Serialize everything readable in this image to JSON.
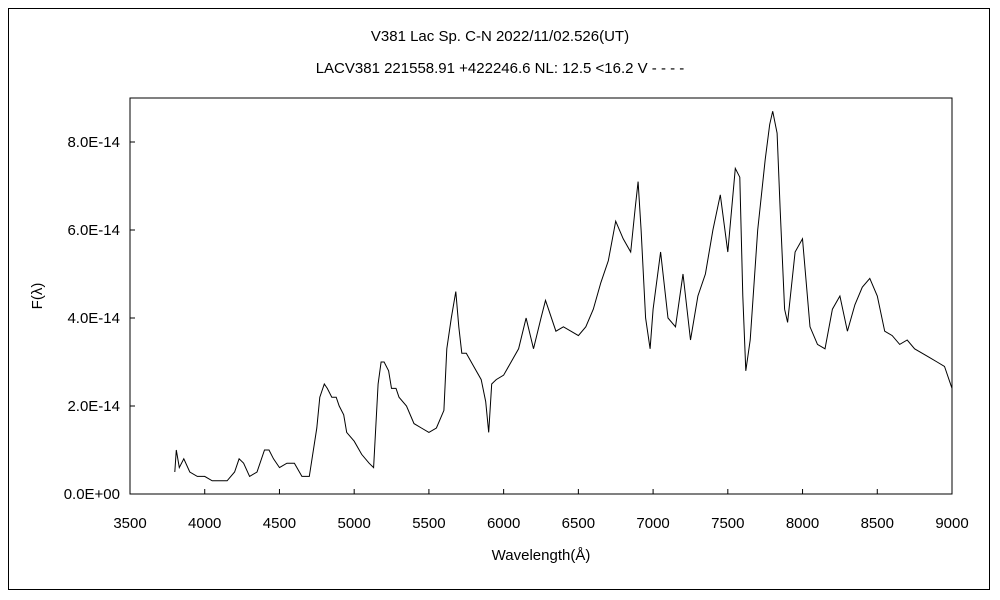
{
  "chart_data": {
    "type": "line",
    "title": "V381 Lac    Sp. C-N    2022/11/02.526(UT)",
    "subtitle": "LACV381 221558.91 +422246.6 NL: 12.5 <16.2 V - - - -",
    "xlabel": "Wavelength(Å)",
    "ylabel": "F(λ)",
    "xlim": [
      3500,
      9000
    ],
    "ylim": [
      0,
      9e-14
    ],
    "x_ticks": [
      3500,
      4000,
      4500,
      5000,
      5500,
      6000,
      6500,
      7000,
      7500,
      8000,
      8500,
      9000
    ],
    "y_ticks": [
      0,
      2e-14,
      4e-14,
      6e-14,
      8e-14
    ],
    "x_tick_labels": [
      "3500",
      "4000",
      "4500",
      "5000",
      "5500",
      "6000",
      "6500",
      "7000",
      "7500",
      "8000",
      "8500",
      "9000"
    ],
    "y_tick_labels": [
      "0.0E+00",
      "2.0E-14",
      "4.0E-14",
      "6.0E-14",
      "8.0E-14"
    ],
    "grid": false,
    "legend": "none",
    "line_color": "#000000",
    "series": [
      {
        "x": [
          3800,
          3810,
          3830,
          3860,
          3900,
          3950,
          4000,
          4050,
          4100,
          4150,
          4200,
          4230,
          4260,
          4300,
          4350,
          4400,
          4430,
          4460,
          4500,
          4550,
          4600,
          4650,
          4700,
          4750,
          4770,
          4800,
          4820,
          4850,
          4880,
          4900,
          4930,
          4950,
          5000,
          5050,
          5100,
          5130,
          5160,
          5180,
          5200,
          5230,
          5250,
          5280,
          5300,
          5350,
          5400,
          5450,
          5500,
          5550,
          5600,
          5620,
          5650,
          5680,
          5700,
          5720,
          5750,
          5800,
          5850,
          5880,
          5900,
          5920,
          5950,
          6000,
          6050,
          6100,
          6150,
          6200,
          6250,
          6280,
          6300,
          6350,
          6400,
          6450,
          6500,
          6550,
          6600,
          6650,
          6700,
          6750,
          6800,
          6850,
          6880,
          6900,
          6920,
          6950,
          6980,
          7000,
          7050,
          7100,
          7150,
          7200,
          7250,
          7300,
          7350,
          7400,
          7450,
          7500,
          7550,
          7580,
          7600,
          7620,
          7650,
          7700,
          7750,
          7780,
          7800,
          7830,
          7850,
          7880,
          7900,
          7950,
          8000,
          8050,
          8100,
          8150,
          8200,
          8250,
          8300,
          8350,
          8400,
          8450,
          8500,
          8550,
          8600,
          8650,
          8700,
          8750,
          8800,
          8850,
          8900,
          8950,
          9000
        ],
        "y": [
          5e-15,
          1e-14,
          6e-15,
          8e-15,
          5e-15,
          4e-15,
          4e-15,
          3e-15,
          3e-15,
          3e-15,
          5e-15,
          8e-15,
          7e-15,
          4e-15,
          5e-15,
          1e-14,
          1e-14,
          8e-15,
          6e-15,
          7e-15,
          7e-15,
          4e-15,
          4e-15,
          1.5e-14,
          2.2e-14,
          2.5e-14,
          2.4e-14,
          2.2e-14,
          2.2e-14,
          2e-14,
          1.8e-14,
          1.4e-14,
          1.2e-14,
          9e-15,
          7e-15,
          6e-15,
          2.5e-14,
          3e-14,
          3e-14,
          2.8e-14,
          2.4e-14,
          2.4e-14,
          2.2e-14,
          2e-14,
          1.6e-14,
          1.5e-14,
          1.4e-14,
          1.5e-14,
          1.9e-14,
          3.3e-14,
          4e-14,
          4.6e-14,
          3.8e-14,
          3.2e-14,
          3.2e-14,
          2.9e-14,
          2.6e-14,
          2.1e-14,
          1.4e-14,
          2.5e-14,
          2.6e-14,
          2.7e-14,
          3e-14,
          3.3e-14,
          4e-14,
          3.3e-14,
          4e-14,
          4.4e-14,
          4.2e-14,
          3.7e-14,
          3.8e-14,
          3.7e-14,
          3.6e-14,
          3.8e-14,
          4.2e-14,
          4.8e-14,
          5.3e-14,
          6.2e-14,
          5.8e-14,
          5.5e-14,
          6.5e-14,
          7.1e-14,
          6e-14,
          4e-14,
          3.3e-14,
          4.2e-14,
          5.5e-14,
          4e-14,
          3.8e-14,
          5e-14,
          3.5e-14,
          4.5e-14,
          5e-14,
          6e-14,
          6.8e-14,
          5.5e-14,
          7.4e-14,
          7.2e-14,
          4.5e-14,
          2.8e-14,
          3.5e-14,
          6e-14,
          7.6e-14,
          8.4e-14,
          8.7e-14,
          8.2e-14,
          6.5e-14,
          4.2e-14,
          3.9e-14,
          5.5e-14,
          5.8e-14,
          3.8e-14,
          3.4e-14,
          3.3e-14,
          4.2e-14,
          4.5e-14,
          3.7e-14,
          4.3e-14,
          4.7e-14,
          4.9e-14,
          4.5e-14,
          3.7e-14,
          3.6e-14,
          3.4e-14,
          3.5e-14,
          3.3e-14,
          3.2e-14,
          3.1e-14,
          3e-14,
          2.9e-14,
          2.4e-14
        ]
      }
    ]
  }
}
